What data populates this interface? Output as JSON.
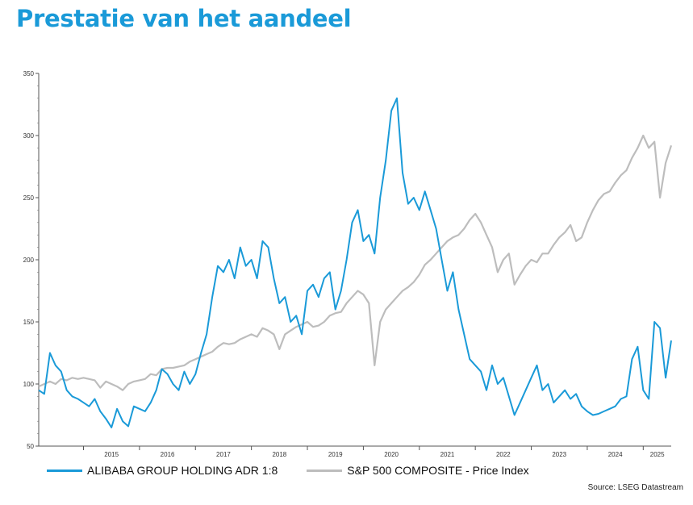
{
  "title": "Prestatie van het aandeel",
  "accent_color": "#1a9ad8",
  "source": "Source: LSEG Datastream",
  "chart_data": {
    "type": "line",
    "title": "Prestatie van het aandeel",
    "xlabel": "",
    "ylabel": "",
    "ylim": [
      50,
      350
    ],
    "yticks": [
      50,
      100,
      150,
      200,
      250,
      300,
      350
    ],
    "xlim": [
      2014.2,
      2025.5
    ],
    "xtick_labels": [
      "2015",
      "2016",
      "2017",
      "2018",
      "2019",
      "2020",
      "2021",
      "2022",
      "2023",
      "2024",
      "2025"
    ],
    "grid": false,
    "legend": "bottom",
    "series": [
      {
        "name": "ALIBABA GROUP HOLDING ADR 1:8",
        "color": "#1a9ad8",
        "x": [
          2014.2,
          2014.3,
          2014.4,
          2014.5,
          2014.6,
          2014.7,
          2014.8,
          2014.9,
          2015.0,
          2015.1,
          2015.2,
          2015.3,
          2015.4,
          2015.5,
          2015.6,
          2015.7,
          2015.8,
          2015.9,
          2016.0,
          2016.1,
          2016.2,
          2016.3,
          2016.4,
          2016.5,
          2016.6,
          2016.7,
          2016.8,
          2016.9,
          2017.0,
          2017.1,
          2017.2,
          2017.3,
          2017.4,
          2017.5,
          2017.6,
          2017.7,
          2017.8,
          2017.9,
          2018.0,
          2018.1,
          2018.2,
          2018.3,
          2018.4,
          2018.5,
          2018.6,
          2018.7,
          2018.8,
          2018.9,
          2019.0,
          2019.1,
          2019.2,
          2019.3,
          2019.4,
          2019.5,
          2019.6,
          2019.7,
          2019.8,
          2019.9,
          2020.0,
          2020.1,
          2020.2,
          2020.3,
          2020.4,
          2020.5,
          2020.6,
          2020.7,
          2020.8,
          2020.9,
          2021.0,
          2021.1,
          2021.2,
          2021.3,
          2021.4,
          2021.5,
          2021.6,
          2021.7,
          2021.8,
          2021.9,
          2022.0,
          2022.1,
          2022.2,
          2022.3,
          2022.4,
          2022.5,
          2022.6,
          2022.7,
          2022.8,
          2022.9,
          2023.0,
          2023.1,
          2023.2,
          2023.3,
          2023.4,
          2023.5,
          2023.6,
          2023.7,
          2023.8,
          2023.9,
          2024.0,
          2024.1,
          2024.2,
          2024.3,
          2024.4,
          2024.5,
          2024.6,
          2024.7,
          2024.8,
          2024.9,
          2025.0,
          2025.1,
          2025.2,
          2025.3,
          2025.4,
          2025.5
        ],
        "values": [
          95,
          92,
          125,
          115,
          110,
          95,
          90,
          88,
          85,
          82,
          88,
          78,
          72,
          65,
          80,
          70,
          66,
          82,
          80,
          78,
          85,
          95,
          112,
          108,
          100,
          95,
          110,
          100,
          108,
          125,
          140,
          170,
          195,
          190,
          200,
          185,
          210,
          195,
          200,
          185,
          215,
          210,
          185,
          165,
          170,
          150,
          155,
          140,
          175,
          180,
          170,
          185,
          190,
          160,
          175,
          200,
          230,
          240,
          215,
          220,
          205,
          250,
          280,
          320,
          330,
          270,
          245,
          250,
          240,
          255,
          240,
          225,
          200,
          175,
          190,
          160,
          140,
          120,
          115,
          110,
          95,
          115,
          100,
          105,
          90,
          75,
          85,
          95,
          105,
          115,
          95,
          100,
          85,
          90,
          95,
          88,
          92,
          82,
          78,
          75,
          76,
          78,
          80,
          82,
          88,
          90,
          120,
          130,
          95,
          88,
          150,
          145,
          105,
          135
        ]
      },
      {
        "name": "S&P 500 COMPOSITE - Price Index",
        "color": "#bdbdbd",
        "x": [
          2014.2,
          2014.3,
          2014.4,
          2014.5,
          2014.6,
          2014.7,
          2014.8,
          2014.9,
          2015.0,
          2015.1,
          2015.2,
          2015.3,
          2015.4,
          2015.5,
          2015.6,
          2015.7,
          2015.8,
          2015.9,
          2016.0,
          2016.1,
          2016.2,
          2016.3,
          2016.4,
          2016.5,
          2016.6,
          2016.7,
          2016.8,
          2016.9,
          2017.0,
          2017.1,
          2017.2,
          2017.3,
          2017.4,
          2017.5,
          2017.6,
          2017.7,
          2017.8,
          2017.9,
          2018.0,
          2018.1,
          2018.2,
          2018.3,
          2018.4,
          2018.5,
          2018.6,
          2018.7,
          2018.8,
          2018.9,
          2019.0,
          2019.1,
          2019.2,
          2019.3,
          2019.4,
          2019.5,
          2019.6,
          2019.7,
          2019.8,
          2019.9,
          2020.0,
          2020.1,
          2020.2,
          2020.3,
          2020.4,
          2020.5,
          2020.6,
          2020.7,
          2020.8,
          2020.9,
          2021.0,
          2021.1,
          2021.2,
          2021.3,
          2021.4,
          2021.5,
          2021.6,
          2021.7,
          2021.8,
          2021.9,
          2022.0,
          2022.1,
          2022.2,
          2022.3,
          2022.4,
          2022.5,
          2022.6,
          2022.7,
          2022.8,
          2022.9,
          2023.0,
          2023.1,
          2023.2,
          2023.3,
          2023.4,
          2023.5,
          2023.6,
          2023.7,
          2023.8,
          2023.9,
          2024.0,
          2024.1,
          2024.2,
          2024.3,
          2024.4,
          2024.5,
          2024.6,
          2024.7,
          2024.8,
          2024.9,
          2025.0,
          2025.1,
          2025.2,
          2025.3,
          2025.4,
          2025.5
        ],
        "values": [
          98,
          100,
          102,
          100,
          104,
          103,
          105,
          104,
          105,
          104,
          103,
          97,
          102,
          100,
          98,
          95,
          100,
          102,
          103,
          104,
          108,
          107,
          112,
          113,
          113,
          114,
          115,
          118,
          120,
          122,
          124,
          126,
          130,
          133,
          132,
          133,
          136,
          138,
          140,
          138,
          145,
          143,
          140,
          128,
          140,
          143,
          146,
          148,
          150,
          146,
          147,
          150,
          155,
          157,
          158,
          165,
          170,
          175,
          172,
          165,
          115,
          150,
          160,
          165,
          170,
          175,
          178,
          182,
          188,
          196,
          200,
          205,
          210,
          215,
          218,
          220,
          225,
          232,
          237,
          230,
          220,
          210,
          190,
          200,
          205,
          180,
          188,
          195,
          200,
          198,
          205,
          205,
          212,
          218,
          222,
          228,
          215,
          218,
          230,
          240,
          248,
          253,
          255,
          262,
          268,
          272,
          282,
          290,
          300,
          290,
          295,
          250,
          278,
          292
        ]
      }
    ]
  }
}
